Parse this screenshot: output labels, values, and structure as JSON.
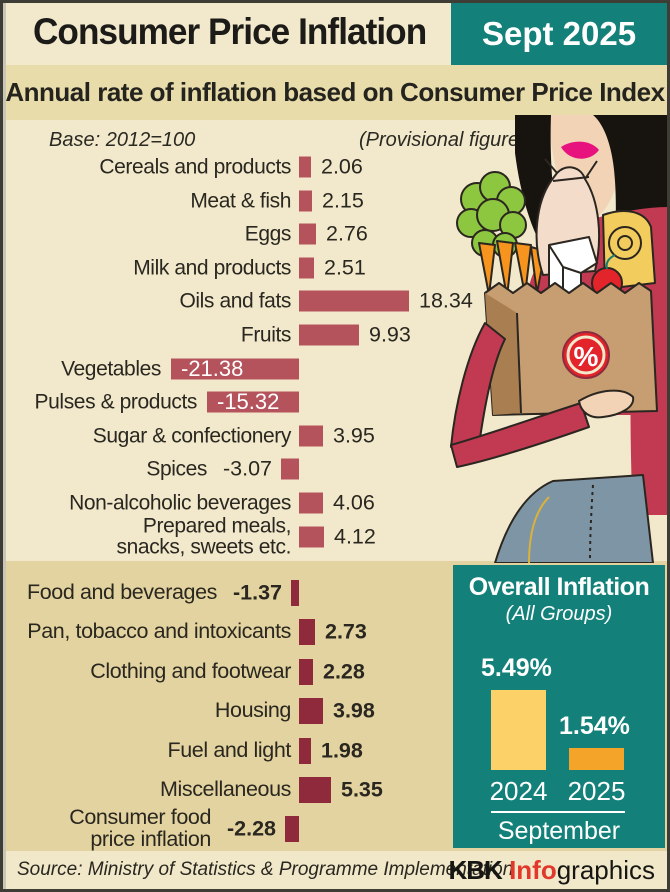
{
  "header": {
    "title": "Consumer Price Inflation",
    "date_badge": "Sept 2025"
  },
  "subtitle": "Annual rate of inflation based on Consumer Price Index",
  "meta": {
    "base_note": "Base: 2012=100",
    "provisional_note": "(Provisional figures)"
  },
  "colors": {
    "teal": "#13817a",
    "top_bar": "#b5535d",
    "bottom_bar": "#8e2a3c",
    "bar_2024": "#fbd168",
    "bar_2025": "#f4a429",
    "accent_red": "#e2382c",
    "band_light": "#f2e9cc",
    "band_mid": "#e9dcab",
    "band_dark": "#e3d3a0"
  },
  "chart_data": [
    {
      "type": "bar",
      "orientation": "horizontal",
      "section": "food-items",
      "title": "Annual rate of inflation based on Consumer Price Index",
      "subtitle": "Base: 2012=100 (Provisional figures)",
      "categories": [
        "Cereals and products",
        "Meat & fish",
        "Eggs",
        "Milk and products",
        "Oils and fats",
        "Fruits",
        "Vegetables",
        "Pulses & products",
        "Sugar & confectionery",
        "Spices",
        "Non-alcoholic beverages",
        "Prepared meals,\nsnacks, sweets etc."
      ],
      "values": [
        2.06,
        2.15,
        2.76,
        2.51,
        18.34,
        9.93,
        -21.38,
        -15.32,
        3.95,
        -3.07,
        4.06,
        4.12
      ]
    },
    {
      "type": "bar",
      "orientation": "horizontal",
      "section": "major-groups",
      "categories": [
        "Food and beverages",
        "Pan, tobacco and intoxicants",
        "Clothing and footwear",
        "Housing",
        "Fuel and light",
        "Miscellaneous",
        "Consumer food\nprice inflation"
      ],
      "values": [
        -1.37,
        2.73,
        2.28,
        3.98,
        1.98,
        5.35,
        -2.28
      ]
    },
    {
      "type": "bar",
      "orientation": "vertical",
      "section": "overall-inflation",
      "title": "Overall Inflation",
      "subtitle": "(All Groups)",
      "categories": [
        "2024",
        "2025"
      ],
      "values": [
        5.49,
        1.54
      ],
      "unit": "%",
      "xlabel": "September"
    }
  ],
  "footer": {
    "source": "Source: Ministry of Statistics & Programme Implementation",
    "credit_parts": {
      "kbk": "KBK",
      "info": "Info",
      "graphics": "graphics"
    }
  },
  "illustration": {
    "name": "woman-with-grocery-bag",
    "badge": "%"
  }
}
